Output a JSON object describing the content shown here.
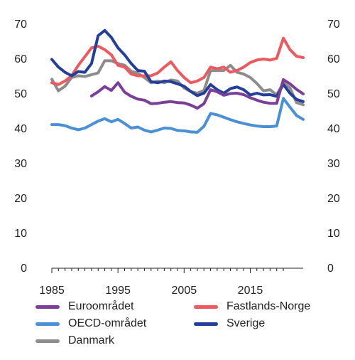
{
  "chart_data": {
    "type": "line",
    "title": "",
    "xlabel": "",
    "ylabel": "",
    "xlim": [
      1985,
      2023
    ],
    "ylim": [
      0,
      70
    ],
    "x_ticks": [
      1985,
      1995,
      2005,
      2015
    ],
    "y_ticks": [
      0,
      10,
      20,
      30,
      40,
      50,
      60,
      70
    ],
    "x_tick_labels": [
      "1985",
      "1995",
      "2005",
      "2015"
    ],
    "y_tick_labels": [
      "0",
      "10",
      "20",
      "30",
      "40",
      "50",
      "60",
      "70"
    ],
    "grid": false,
    "legend_position": "bottom",
    "series": [
      {
        "name": "Euroområdet",
        "color": "#7b3f99",
        "x": [
          1991,
          1992,
          1993,
          1994,
          1995,
          1996,
          1997,
          1998,
          1999,
          2000,
          2001,
          2002,
          2003,
          2004,
          2005,
          2006,
          2007,
          2008,
          2009,
          2010,
          2011,
          2012,
          2013,
          2014,
          2015,
          2016,
          2017,
          2018,
          2019,
          2020,
          2021,
          2022,
          2023
        ],
        "y": [
          49.2,
          50.4,
          51.9,
          50.8,
          53.0,
          50.3,
          49.1,
          48.3,
          48.0,
          47.0,
          47.1,
          47.4,
          47.6,
          47.3,
          47.2,
          46.6,
          45.7,
          47.0,
          51.0,
          50.4,
          49.4,
          49.9,
          50.0,
          49.6,
          48.7,
          48.0,
          47.4,
          47.1,
          47.1,
          53.9,
          52.7,
          51.1,
          49.8
        ]
      },
      {
        "name": "Fastlands-Norge",
        "color": "#ec5a5f",
        "x": [
          1985,
          1986,
          1987,
          1988,
          1989,
          1990,
          1991,
          1992,
          1993,
          1994,
          1995,
          1996,
          1997,
          1998,
          1999,
          2000,
          2001,
          2002,
          2003,
          2004,
          2005,
          2006,
          2007,
          2008,
          2009,
          2010,
          2011,
          2012,
          2013,
          2014,
          2015,
          2016,
          2017,
          2018,
          2019,
          2020,
          2021,
          2022,
          2023
        ],
        "y": [
          53.0,
          52.5,
          53.5,
          55.0,
          58.0,
          60.5,
          63.0,
          63.5,
          62.5,
          61.0,
          58.0,
          57.5,
          55.5,
          55.0,
          55.0,
          55.0,
          55.8,
          57.5,
          59.0,
          56.5,
          54.5,
          53.0,
          53.5,
          54.5,
          57.5,
          57.0,
          57.5,
          56.0,
          56.5,
          57.5,
          58.8,
          59.5,
          59.8,
          59.5,
          60.0,
          65.8,
          62.5,
          60.6,
          60.2
        ]
      },
      {
        "name": "OECD-området",
        "color": "#4a90d6",
        "x": [
          1985,
          1986,
          1987,
          1988,
          1989,
          1990,
          1991,
          1992,
          1993,
          1994,
          1995,
          1996,
          1997,
          1998,
          1999,
          2000,
          2001,
          2002,
          2003,
          2004,
          2005,
          2006,
          2007,
          2008,
          2009,
          2010,
          2011,
          2012,
          2013,
          2014,
          2015,
          2016,
          2017,
          2018,
          2019,
          2020,
          2021,
          2022,
          2023
        ],
        "y": [
          41.0,
          41.0,
          40.7,
          40.0,
          39.5,
          40.0,
          41.0,
          42.0,
          42.7,
          41.8,
          42.5,
          41.3,
          40.0,
          40.3,
          39.4,
          38.9,
          39.4,
          40.0,
          39.9,
          39.3,
          39.2,
          38.9,
          38.8,
          40.5,
          44.2,
          43.8,
          43.1,
          42.4,
          41.8,
          41.3,
          40.9,
          40.6,
          40.4,
          40.4,
          40.6,
          48.5,
          46.0,
          43.6,
          42.5
        ]
      },
      {
        "name": "Sverige",
        "color": "#233f99",
        "x": [
          1985,
          1986,
          1987,
          1988,
          1989,
          1990,
          1991,
          1992,
          1993,
          1994,
          1995,
          1996,
          1997,
          1998,
          1999,
          2000,
          2001,
          2002,
          2003,
          2004,
          2005,
          2006,
          2007,
          2008,
          2009,
          2010,
          2011,
          2012,
          2013,
          2014,
          2015,
          2016,
          2017,
          2018,
          2019,
          2020,
          2021,
          2022,
          2023
        ],
        "y": [
          59.7,
          57.5,
          56.0,
          55.0,
          56.2,
          56.0,
          58.5,
          66.5,
          68.0,
          66.0,
          63.0,
          61.0,
          58.5,
          56.5,
          56.3,
          53.3,
          53.0,
          53.5,
          53.3,
          52.7,
          52.0,
          50.5,
          49.3,
          50.0,
          52.5,
          51.0,
          50.0,
          51.3,
          51.8,
          51.0,
          49.5,
          50.0,
          49.5,
          49.6,
          49.1,
          52.5,
          50.0,
          48.2,
          47.6
        ]
      },
      {
        "name": "Danmark",
        "color": "#8c8c8c",
        "x": [
          1985,
          1986,
          1987,
          1988,
          1989,
          1990,
          1991,
          1992,
          1993,
          1994,
          1995,
          1996,
          1997,
          1998,
          1999,
          2000,
          2001,
          2002,
          2003,
          2004,
          2005,
          2006,
          2007,
          2008,
          2009,
          2010,
          2011,
          2012,
          2013,
          2014,
          2015,
          2016,
          2017,
          2018,
          2019,
          2020,
          2021,
          2022,
          2023
        ],
        "y": [
          54.0,
          50.7,
          52.0,
          54.5,
          55.0,
          54.8,
          55.3,
          55.8,
          59.3,
          59.3,
          58.5,
          58.0,
          56.3,
          55.7,
          54.5,
          53.0,
          53.5,
          53.0,
          53.8,
          53.5,
          51.5,
          50.5,
          50.0,
          50.8,
          56.5,
          56.5,
          56.5,
          58.0,
          56.0,
          55.5,
          54.5,
          52.8,
          50.7,
          51.0,
          49.5,
          53.0,
          51.5,
          47.3,
          46.7
        ]
      }
    ]
  }
}
